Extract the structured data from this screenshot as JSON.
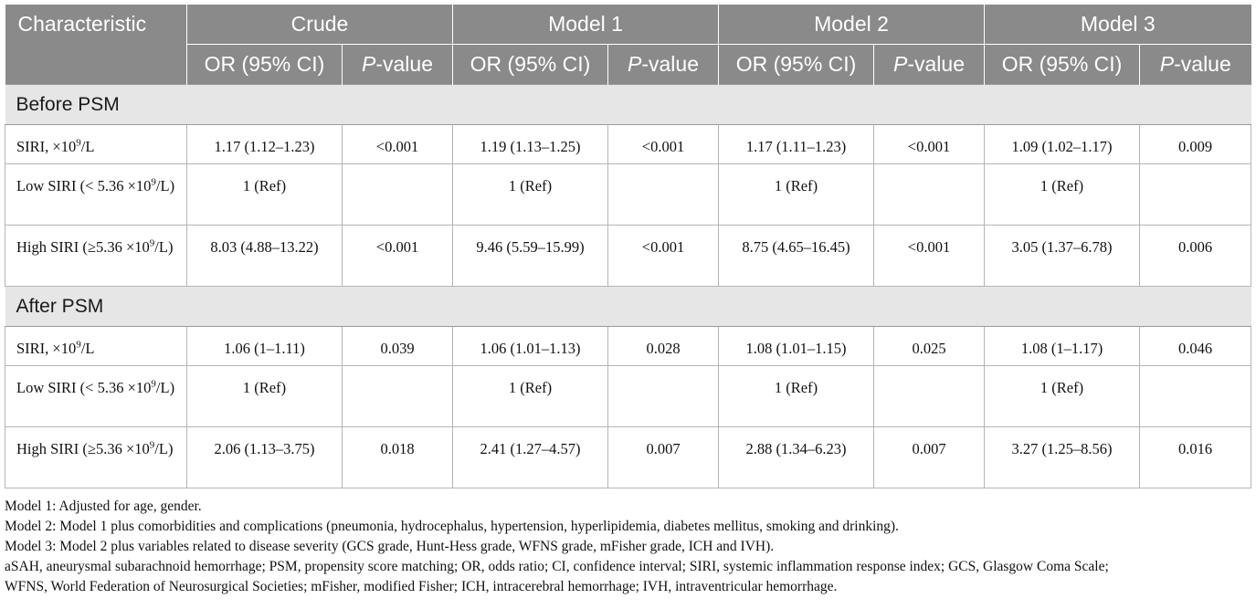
{
  "header": {
    "characteristic": "Characteristic",
    "groups": [
      "Crude",
      "Model 1",
      "Model 2",
      "Model 3"
    ],
    "or_label": "OR (95% CI)",
    "p_label_italic": "P",
    "p_label_rest": "-value"
  },
  "sections": [
    {
      "title": "Before PSM",
      "rows": [
        {
          "label_pre": "SIRI, ×10",
          "sup": "9",
          "label_post": "/L",
          "cells": [
            "1.17 (1.12–1.23)",
            "<0.001",
            "1.19 (1.13–1.25)",
            "<0.001",
            "1.17 (1.11–1.23)",
            "<0.001",
            "1.09 (1.02–1.17)",
            "0.009"
          ]
        },
        {
          "label_pre": "Low SIRI (< 5.36 ×10",
          "sup": "9",
          "label_post": "/L)",
          "cells": [
            "1 (Ref)",
            "",
            "1 (Ref)",
            "",
            "1 (Ref)",
            "",
            "1 (Ref)",
            ""
          ]
        },
        {
          "label_pre": "High SIRI (≥5.36 ×10",
          "sup": "9",
          "label_post": "/L)",
          "cells": [
            "8.03 (4.88–13.22)",
            "<0.001",
            "9.46 (5.59–15.99)",
            "<0.001",
            "8.75 (4.65–16.45)",
            "<0.001",
            "3.05 (1.37–6.78)",
            "0.006"
          ]
        }
      ]
    },
    {
      "title": "After PSM",
      "rows": [
        {
          "label_pre": "SIRI, ×10",
          "sup": "9",
          "label_post": "/L",
          "cells": [
            "1.06 (1–1.11)",
            "0.039",
            "1.06 (1.01–1.13)",
            "0.028",
            "1.08 (1.01–1.15)",
            "0.025",
            "1.08 (1–1.17)",
            "0.046"
          ]
        },
        {
          "label_pre": "Low SIRI (< 5.36 ×10",
          "sup": "9",
          "label_post": "/L)",
          "cells": [
            "1 (Ref)",
            "",
            "1 (Ref)",
            "",
            "1 (Ref)",
            "",
            "1 (Ref)",
            ""
          ]
        },
        {
          "label_pre": "High SIRI (≥5.36 ×10",
          "sup": "9",
          "label_post": "/L)",
          "cells": [
            "2.06 (1.13–3.75)",
            "0.018",
            "2.41 (1.27–4.57)",
            "0.007",
            "2.88 (1.34–6.23)",
            "0.007",
            "3.27 (1.25–8.56)",
            "0.016"
          ]
        }
      ]
    }
  ],
  "footnotes": [
    "Model 1: Adjusted for age, gender.",
    "Model 2: Model 1 plus comorbidities and complications (pneumonia, hydrocephalus, hypertension, hyperlipidemia, diabetes mellitus, smoking and drinking).",
    "Model 3: Model 2 plus variables related to disease severity (GCS grade, Hunt-Hess grade, WFNS grade, mFisher grade, ICH and IVH).",
    "aSAH, aneurysmal subarachnoid hemorrhage; PSM, propensity score matching; OR, odds ratio; CI, confidence interval; SIRI, systemic inflammation response index; GCS, Glasgow Coma Scale;",
    "WFNS, World Federation of Neurosurgical Societies; mFisher, modified Fisher; ICH, intracerebral hemorrhage; IVH, intraventricular hemorrhage."
  ]
}
